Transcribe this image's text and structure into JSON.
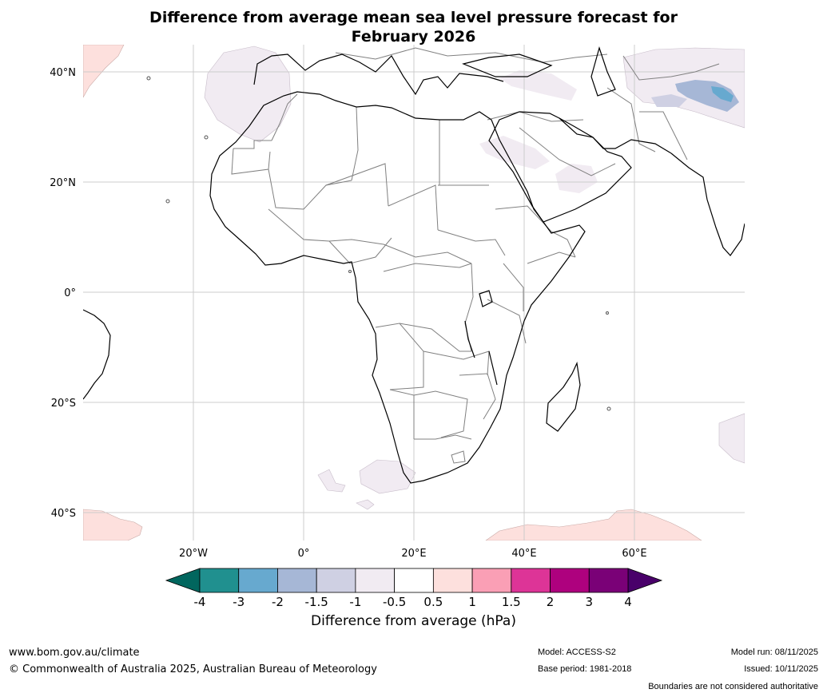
{
  "title_line1": "Difference from average mean sea level pressure forecast for",
  "title_line2": "February 2026",
  "map": {
    "lat_ticks": [
      "40°N",
      "20°N",
      "0°",
      "20°S",
      "40°S"
    ],
    "lon_ticks": [
      "20°W",
      "0°",
      "20°E",
      "40°E",
      "60°E"
    ],
    "extent": {
      "lon_min": -40,
      "lon_max": 80,
      "lat_min": -45,
      "lat_max": 45
    }
  },
  "colorbar": {
    "ticks": [
      "-4",
      "-3",
      "-2",
      "-1.5",
      "-1",
      "-0.5",
      "0.5",
      "1",
      "1.5",
      "2",
      "3",
      "4"
    ],
    "colors": [
      "#20908f",
      "#67a9cf",
      "#a6b7d6",
      "#cfd0e3",
      "#f1ebf2",
      "#ffffff",
      "#fde0dd",
      "#fa9fb5",
      "#dd3497",
      "#ae017e",
      "#7a0177"
    ],
    "under_color": "#01665e",
    "over_color": "#49006a",
    "label": "Difference from average (hPa)"
  },
  "footer": {
    "website": "www.bom.gov.au/climate",
    "copyright": "© Commonwealth of Australia 2025, Australian Bureau of Meteorology",
    "model": "Model: ACCESS-S2",
    "base_period": "Base period: 1981-2018",
    "model_run": "Model run: 08/11/2025",
    "issued": "Issued: 10/11/2025",
    "disclaimer": "Boundaries are not considered authoritative"
  }
}
